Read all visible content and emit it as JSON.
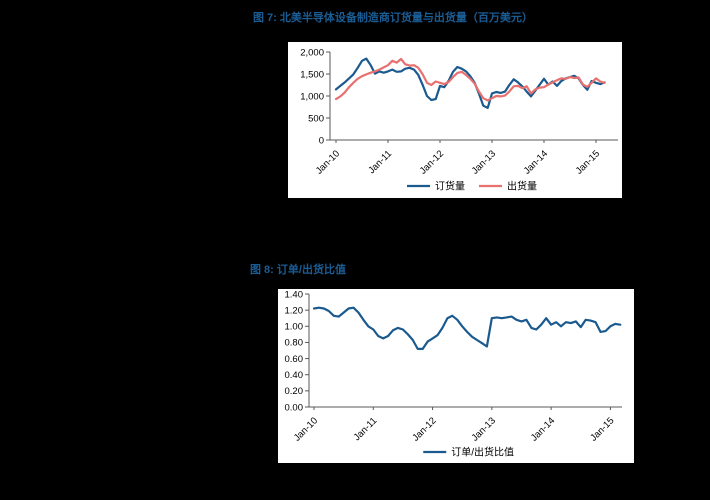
{
  "page": {
    "background_color": "#000000",
    "panel_color": "#ffffff",
    "title_color": "#1A5C94"
  },
  "figure7": {
    "title": "图 7: 北美半导体设备制造商订货量与出货量（百万美元）"
  },
  "figure8": {
    "title": "图 8: 订单/出货比值"
  },
  "chart_data": [
    {
      "type": "line",
      "title": "",
      "x_start": "Jan-10",
      "x_end": "Mar-15",
      "frequency": "monthly",
      "x_tick_labels": [
        "Jan-10",
        "Jan-11",
        "Jan-12",
        "Jan-13",
        "Jan-14",
        "Jan-15"
      ],
      "ylim": [
        0,
        2000
      ],
      "y_tick_values": [
        0,
        500,
        1000,
        1500,
        2000
      ],
      "y_tick_labels": [
        "0",
        "500",
        "1,000",
        "1,500",
        "2,000"
      ],
      "grid": false,
      "legend_position": "bottom",
      "series": [
        {
          "name": "订货量",
          "color": "#1B5A8F",
          "values": [
            1150,
            1230,
            1310,
            1400,
            1490,
            1640,
            1800,
            1850,
            1700,
            1510,
            1560,
            1530,
            1560,
            1600,
            1550,
            1560,
            1620,
            1640,
            1600,
            1480,
            1250,
            1000,
            910,
            930,
            1230,
            1200,
            1350,
            1550,
            1660,
            1620,
            1560,
            1450,
            1300,
            1050,
            780,
            730,
            1060,
            1090,
            1070,
            1100,
            1250,
            1380,
            1310,
            1220,
            1100,
            990,
            1120,
            1260,
            1390,
            1260,
            1330,
            1230,
            1340,
            1400,
            1430,
            1460,
            1400,
            1250,
            1140,
            1340,
            1300,
            1270,
            1310
          ]
        },
        {
          "name": "出货量",
          "color": "#E8716F",
          "values": [
            930,
            990,
            1080,
            1200,
            1300,
            1390,
            1450,
            1490,
            1530,
            1560,
            1600,
            1650,
            1700,
            1800,
            1760,
            1840,
            1720,
            1690,
            1700,
            1640,
            1490,
            1300,
            1250,
            1330,
            1300,
            1270,
            1320,
            1430,
            1520,
            1550,
            1480,
            1390,
            1280,
            1100,
            950,
            900,
            950,
            1000,
            990,
            1010,
            1100,
            1220,
            1230,
            1180,
            1220,
            1060,
            1150,
            1190,
            1200,
            1260,
            1310,
            1360,
            1400,
            1390,
            1430,
            1410,
            1420,
            1260,
            1210,
            1300,
            1400,
            1330,
            1300
          ]
        }
      ]
    },
    {
      "type": "line",
      "title": "",
      "x_start": "Jan-10",
      "x_end": "Mar-15",
      "frequency": "monthly",
      "x_tick_labels": [
        "Jan-10",
        "Jan-11",
        "Jan-12",
        "Jan-13",
        "Jan-14",
        "Jan-15"
      ],
      "ylim": [
        0,
        1.4
      ],
      "y_tick_values": [
        0,
        0.2,
        0.4,
        0.6,
        0.8,
        1.0,
        1.2,
        1.4
      ],
      "y_tick_labels": [
        "0.00",
        "0.20",
        "0.40",
        "0.60",
        "0.80",
        "1.00",
        "1.20",
        "1.40"
      ],
      "grid": false,
      "legend_position": "bottom",
      "series": [
        {
          "name": "订单/出货比值",
          "color": "#1B5A8F",
          "values": [
            1.22,
            1.23,
            1.22,
            1.19,
            1.13,
            1.12,
            1.17,
            1.22,
            1.23,
            1.17,
            1.08,
            1.0,
            0.96,
            0.88,
            0.85,
            0.88,
            0.95,
            0.98,
            0.96,
            0.9,
            0.83,
            0.72,
            0.72,
            0.81,
            0.85,
            0.89,
            0.98,
            1.1,
            1.13,
            1.08,
            1.0,
            0.93,
            0.87,
            0.83,
            0.79,
            0.75,
            1.1,
            1.11,
            1.1,
            1.11,
            1.12,
            1.08,
            1.06,
            1.08,
            0.98,
            0.96,
            1.02,
            1.1,
            1.02,
            1.05,
            1.0,
            1.05,
            1.04,
            1.06,
            0.99,
            1.08,
            1.07,
            1.05,
            0.93,
            0.94,
            1.0,
            1.03,
            1.02
          ]
        }
      ]
    }
  ]
}
